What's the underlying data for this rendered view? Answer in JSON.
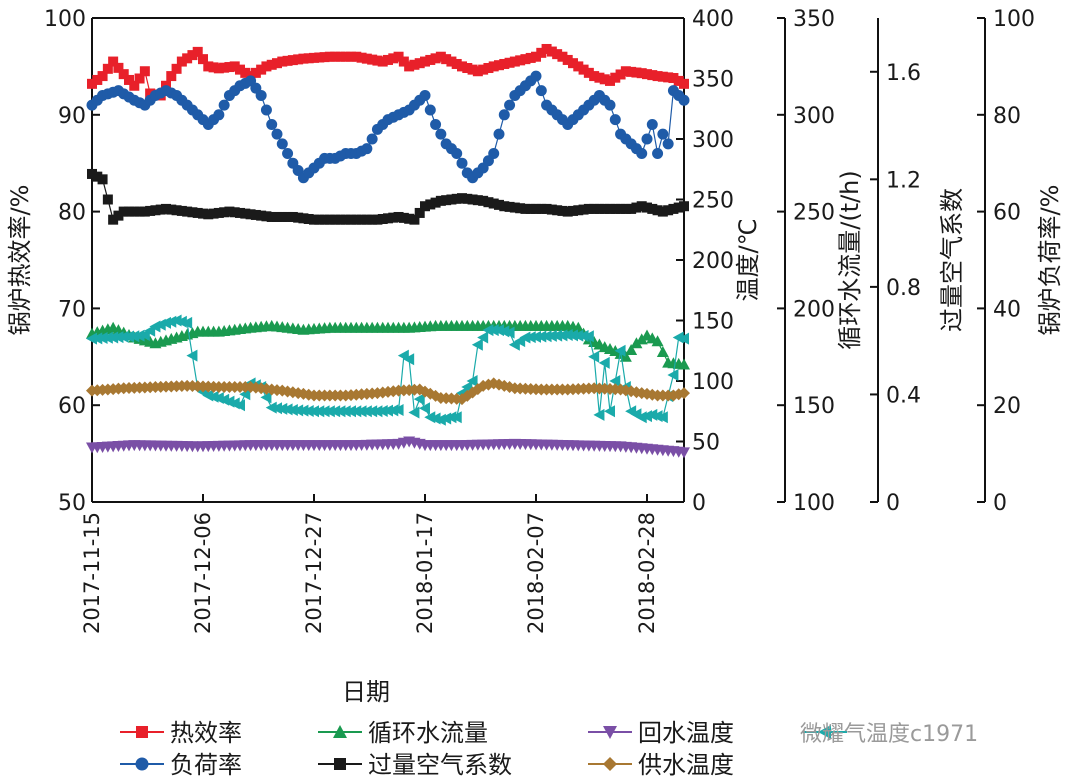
{
  "chart_data": {
    "type": "line",
    "xlabel": "日期",
    "x_ticks": [
      "2017-11-15",
      "2017-12-06",
      "2017-12-27",
      "2018-01-17",
      "2018-02-07",
      "2018-02-28"
    ],
    "n_days": 113,
    "grid": false,
    "legend_position": "bottom",
    "axes": [
      {
        "id": "eff",
        "label": "锅炉热效率/%",
        "side": "left",
        "range": [
          50,
          100
        ],
        "ticks": [
          50,
          60,
          70,
          80,
          90,
          100
        ]
      },
      {
        "id": "temp",
        "label": "温度/℃",
        "side": "right",
        "range": [
          0,
          400
        ],
        "ticks": [
          0,
          50,
          100,
          150,
          200,
          250,
          300,
          350,
          400
        ]
      },
      {
        "id": "flow",
        "label": "循环水流量/(t/h)",
        "side": "right",
        "range": [
          100,
          350
        ],
        "ticks": [
          100,
          150,
          200,
          250,
          300,
          350
        ]
      },
      {
        "id": "air",
        "label": "过量空气系数",
        "side": "right",
        "range": [
          0,
          1.8
        ],
        "ticks": [
          0,
          0.4,
          0.8,
          1.2,
          1.6
        ],
        "tick_labels": [
          "0",
          "0.4",
          "0.8",
          "1.2",
          "1.6"
        ]
      },
      {
        "id": "load",
        "label": "锅炉负荷率/%",
        "side": "right",
        "range": [
          0,
          100
        ],
        "ticks": [
          0,
          20,
          40,
          60,
          80,
          100
        ]
      }
    ],
    "series": [
      {
        "name": "热效率",
        "axis": "eff",
        "color": "#e8202a",
        "marker": "square",
        "points": [
          [
            0,
            93.2
          ],
          [
            2,
            94.0
          ],
          [
            4,
            95.5
          ],
          [
            6,
            94.2
          ],
          [
            8,
            93.0
          ],
          [
            10,
            94.5
          ],
          [
            11,
            92.2
          ],
          [
            13,
            92.0
          ],
          [
            15,
            94.0
          ],
          [
            17,
            95.5
          ],
          [
            20,
            96.5
          ],
          [
            22,
            95.0
          ],
          [
            24,
            94.8
          ],
          [
            27,
            95.0
          ],
          [
            30,
            94.0
          ],
          [
            33,
            95.0
          ],
          [
            36,
            95.5
          ],
          [
            40,
            95.8
          ],
          [
            45,
            96.0
          ],
          [
            50,
            96.0
          ],
          [
            55,
            95.5
          ],
          [
            58,
            96.0
          ],
          [
            60,
            95.0
          ],
          [
            63,
            95.5
          ],
          [
            66,
            96.0
          ],
          [
            68,
            95.5
          ],
          [
            70,
            95.0
          ],
          [
            73,
            94.5
          ],
          [
            76,
            95.0
          ],
          [
            80,
            95.5
          ],
          [
            84,
            96.0
          ],
          [
            86,
            96.8
          ],
          [
            89,
            96.0
          ],
          [
            92,
            95.0
          ],
          [
            95,
            94.0
          ],
          [
            98,
            93.5
          ],
          [
            101,
            94.5
          ],
          [
            104,
            94.3
          ],
          [
            107,
            94.0
          ],
          [
            110,
            93.8
          ],
          [
            112,
            93.2
          ]
        ]
      },
      {
        "name": "负荷率",
        "axis": "load",
        "color": "#1f5ba8",
        "marker": "circle",
        "points": [
          [
            0,
            82
          ],
          [
            2,
            84
          ],
          [
            5,
            85
          ],
          [
            8,
            83
          ],
          [
            10,
            82
          ],
          [
            12,
            84
          ],
          [
            14,
            85
          ],
          [
            16,
            84
          ],
          [
            18,
            82
          ],
          [
            20,
            80
          ],
          [
            22,
            78
          ],
          [
            24,
            80
          ],
          [
            26,
            84
          ],
          [
            28,
            86
          ],
          [
            30,
            87
          ],
          [
            32,
            84
          ],
          [
            34,
            78
          ],
          [
            36,
            74
          ],
          [
            38,
            70
          ],
          [
            40,
            67
          ],
          [
            42,
            69
          ],
          [
            44,
            71
          ],
          [
            46,
            71
          ],
          [
            48,
            72
          ],
          [
            50,
            72
          ],
          [
            52,
            73
          ],
          [
            54,
            77
          ],
          [
            56,
            79
          ],
          [
            58,
            80
          ],
          [
            60,
            81
          ],
          [
            62,
            83
          ],
          [
            63,
            84
          ],
          [
            65,
            78
          ],
          [
            67,
            74
          ],
          [
            69,
            72
          ],
          [
            71,
            68
          ],
          [
            72,
            67
          ],
          [
            74,
            69
          ],
          [
            76,
            72
          ],
          [
            78,
            80
          ],
          [
            80,
            84
          ],
          [
            82,
            86
          ],
          [
            84,
            88
          ],
          [
            86,
            82
          ],
          [
            88,
            80
          ],
          [
            90,
            78
          ],
          [
            92,
            80
          ],
          [
            94,
            82
          ],
          [
            96,
            84
          ],
          [
            98,
            82
          ],
          [
            100,
            76
          ],
          [
            102,
            74
          ],
          [
            104,
            72
          ],
          [
            106,
            78
          ],
          [
            107,
            72
          ],
          [
            108,
            76
          ],
          [
            109,
            74
          ],
          [
            110,
            85
          ],
          [
            111,
            84
          ],
          [
            112,
            83
          ]
        ]
      },
      {
        "name": "循环水流量",
        "axis": "flow",
        "color": "#1a9a50",
        "marker": "triangle-up",
        "points": [
          [
            0,
            187
          ],
          [
            4,
            190
          ],
          [
            8,
            185
          ],
          [
            12,
            182
          ],
          [
            16,
            185
          ],
          [
            20,
            188
          ],
          [
            24,
            188
          ],
          [
            30,
            190
          ],
          [
            34,
            191
          ],
          [
            40,
            189
          ],
          [
            45,
            190
          ],
          [
            50,
            190
          ],
          [
            55,
            190
          ],
          [
            60,
            190
          ],
          [
            65,
            191
          ],
          [
            70,
            191
          ],
          [
            75,
            191
          ],
          [
            80,
            191
          ],
          [
            85,
            191
          ],
          [
            90,
            191
          ],
          [
            92,
            190
          ],
          [
            94,
            184
          ],
          [
            97,
            180
          ],
          [
            99,
            178
          ],
          [
            101,
            175
          ],
          [
            103,
            182
          ],
          [
            105,
            186
          ],
          [
            107,
            183
          ],
          [
            109,
            172
          ],
          [
            112,
            171
          ]
        ]
      },
      {
        "name": "过量空气系数",
        "axis": "air",
        "color": "#1a1a1a",
        "marker": "square",
        "points": [
          [
            0,
            1.22
          ],
          [
            2,
            1.2
          ],
          [
            4,
            1.05
          ],
          [
            6,
            1.08
          ],
          [
            10,
            1.08
          ],
          [
            14,
            1.09
          ],
          [
            18,
            1.08
          ],
          [
            22,
            1.07
          ],
          [
            26,
            1.08
          ],
          [
            30,
            1.07
          ],
          [
            34,
            1.06
          ],
          [
            38,
            1.06
          ],
          [
            42,
            1.05
          ],
          [
            46,
            1.05
          ],
          [
            50,
            1.05
          ],
          [
            54,
            1.05
          ],
          [
            58,
            1.06
          ],
          [
            61,
            1.05
          ],
          [
            63,
            1.1
          ],
          [
            66,
            1.12
          ],
          [
            70,
            1.13
          ],
          [
            74,
            1.12
          ],
          [
            78,
            1.1
          ],
          [
            82,
            1.09
          ],
          [
            86,
            1.09
          ],
          [
            90,
            1.08
          ],
          [
            94,
            1.09
          ],
          [
            98,
            1.09
          ],
          [
            102,
            1.09
          ],
          [
            104,
            1.1
          ],
          [
            106,
            1.09
          ],
          [
            108,
            1.08
          ],
          [
            110,
            1.09
          ],
          [
            112,
            1.1
          ]
        ]
      },
      {
        "name": "回水温度",
        "axis": "temp",
        "color": "#7a4fa6",
        "marker": "triangle-down",
        "points": [
          [
            0,
            45
          ],
          [
            8,
            47
          ],
          [
            20,
            46
          ],
          [
            30,
            47
          ],
          [
            40,
            47
          ],
          [
            50,
            47
          ],
          [
            58,
            48
          ],
          [
            60,
            50
          ],
          [
            63,
            47
          ],
          [
            70,
            47
          ],
          [
            80,
            48
          ],
          [
            90,
            47
          ],
          [
            100,
            46
          ],
          [
            105,
            44
          ],
          [
            110,
            42
          ],
          [
            112,
            41
          ]
        ]
      },
      {
        "name": "微耀气温度",
        "axis": "temp",
        "color": "#1aaaaa",
        "marker": "triangle-left",
        "points": [
          [
            0,
            135
          ],
          [
            4,
            136
          ],
          [
            8,
            137
          ],
          [
            10,
            138
          ],
          [
            12,
            145
          ],
          [
            14,
            148
          ],
          [
            16,
            150
          ],
          [
            18,
            148
          ],
          [
            20,
            94
          ],
          [
            22,
            88
          ],
          [
            24,
            86
          ],
          [
            26,
            83
          ],
          [
            28,
            80
          ],
          [
            30,
            98
          ],
          [
            32,
            95
          ],
          [
            34,
            78
          ],
          [
            38,
            76
          ],
          [
            42,
            75
          ],
          [
            46,
            75
          ],
          [
            50,
            75
          ],
          [
            54,
            75
          ],
          [
            58,
            76
          ],
          [
            59,
            121
          ],
          [
            60,
            118
          ],
          [
            61,
            74
          ],
          [
            62,
            85
          ],
          [
            64,
            70
          ],
          [
            66,
            68
          ],
          [
            68,
            70
          ],
          [
            69,
            70
          ],
          [
            70,
            90
          ],
          [
            72,
            100
          ],
          [
            73,
            130
          ],
          [
            75,
            142
          ],
          [
            77,
            142
          ],
          [
            79,
            140
          ],
          [
            80,
            130
          ],
          [
            82,
            136
          ],
          [
            86,
            137
          ],
          [
            90,
            138
          ],
          [
            94,
            137
          ],
          [
            95,
            120
          ],
          [
            96,
            72
          ],
          [
            97,
            115
          ],
          [
            98,
            75
          ],
          [
            100,
            125
          ],
          [
            101,
            95
          ],
          [
            102,
            75
          ],
          [
            104,
            70
          ],
          [
            106,
            72
          ],
          [
            108,
            70
          ],
          [
            110,
            105
          ],
          [
            111,
            136
          ],
          [
            112,
            135
          ]
        ]
      },
      {
        "name": "供水温度",
        "axis": "temp",
        "color": "#a87832",
        "marker": "diamond",
        "points": [
          [
            0,
            92
          ],
          [
            6,
            94
          ],
          [
            12,
            95
          ],
          [
            18,
            96
          ],
          [
            24,
            95
          ],
          [
            30,
            95
          ],
          [
            36,
            92
          ],
          [
            42,
            88
          ],
          [
            48,
            88
          ],
          [
            54,
            90
          ],
          [
            58,
            92
          ],
          [
            62,
            93
          ],
          [
            66,
            86
          ],
          [
            70,
            85
          ],
          [
            74,
            96
          ],
          [
            76,
            98
          ],
          [
            80,
            94
          ],
          [
            85,
            93
          ],
          [
            90,
            93
          ],
          [
            95,
            94
          ],
          [
            100,
            93
          ],
          [
            104,
            90
          ],
          [
            107,
            88
          ],
          [
            110,
            88
          ],
          [
            112,
            90
          ]
        ]
      }
    ]
  },
  "watermark": "微耀气温度c1971"
}
